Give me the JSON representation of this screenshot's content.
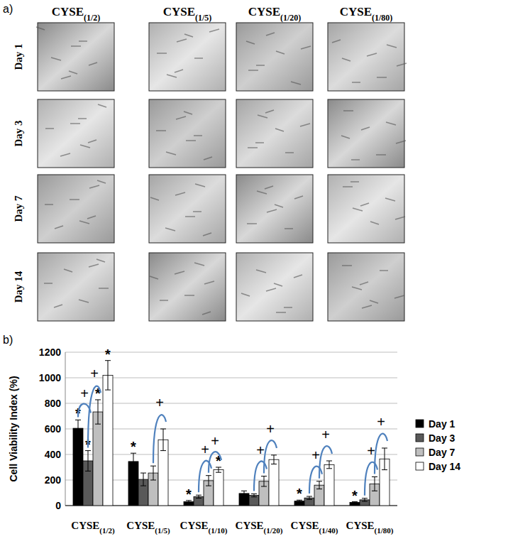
{
  "panel_a": {
    "label": "a)",
    "columns": [
      "CYSE(1/2)",
      "CYSE(1/5)",
      "CYSE(1/20)",
      "CYSE(1/80)"
    ],
    "rows": [
      "Day 1",
      "Day 3",
      "Day 7",
      "Day 14"
    ]
  },
  "panel_b": {
    "label": "b)"
  },
  "chart_data": {
    "type": "bar",
    "y_label": "Cell Viability Index (%)",
    "categories": [
      "CYSE(1/2)",
      "CYSE(1/5)",
      "CYSE(1/10)",
      "CYSE(1/20)",
      "CYSE(1/40)",
      "CYSE(1/80)"
    ],
    "series": [
      {
        "name": "Day 1",
        "color": "#000000",
        "values": [
          605,
          345,
          30,
          95,
          35,
          25
        ],
        "errors": [
          65,
          65,
          10,
          20,
          8,
          5
        ]
      },
      {
        "name": "Day 3",
        "color": "#595959",
        "values": [
          350,
          205,
          70,
          80,
          60,
          45
        ],
        "errors": [
          80,
          50,
          12,
          12,
          12,
          12
        ]
      },
      {
        "name": "Day 7",
        "color": "#bfbfbf",
        "values": [
          733,
          255,
          195,
          190,
          160,
          170
        ],
        "errors": [
          95,
          55,
          40,
          40,
          30,
          55
        ]
      },
      {
        "name": "Day 14",
        "color": "#ffffff",
        "values": [
          1020,
          515,
          280,
          360,
          320,
          365
        ],
        "errors": [
          115,
          85,
          20,
          35,
          30,
          85
        ]
      }
    ],
    "annotations": [
      {
        "text": "*",
        "series": 0,
        "index": 0
      },
      {
        "text": "*",
        "series": 1,
        "index": 0
      },
      {
        "text": "*",
        "series": 2,
        "index": 0
      },
      {
        "text": "*",
        "series": 3,
        "index": 0
      },
      {
        "text": "*",
        "series": 0,
        "index": 1
      },
      {
        "text": "*",
        "series": 0,
        "index": 2
      },
      {
        "text": "*",
        "series": 3,
        "index": 2
      },
      {
        "text": "*",
        "series": 0,
        "index": 4
      },
      {
        "text": "*",
        "series": 0,
        "index": 5
      }
    ],
    "comparisons": [
      {
        "text": "+",
        "from": 0,
        "to": 1,
        "index": 0
      },
      {
        "text": "+",
        "from": 1,
        "to": 2,
        "index": 0
      },
      {
        "text": "+",
        "from": 2,
        "to": 3,
        "index": 1
      },
      {
        "text": "+",
        "from": 1,
        "to": 2,
        "index": 2
      },
      {
        "text": "+",
        "from": 2,
        "to": 3,
        "index": 2
      },
      {
        "text": "+",
        "from": 1,
        "to": 2,
        "index": 3
      },
      {
        "text": "+",
        "from": 2,
        "to": 3,
        "index": 3
      },
      {
        "text": "+",
        "from": 1,
        "to": 2,
        "index": 4
      },
      {
        "text": "+",
        "from": 2,
        "to": 3,
        "index": 4
      },
      {
        "text": "+",
        "from": 1,
        "to": 2,
        "index": 5
      },
      {
        "text": "+",
        "from": 2,
        "to": 3,
        "index": 5
      }
    ],
    "ylim": [
      0,
      1200
    ],
    "yticks": [
      0,
      200,
      400,
      600,
      800,
      1000,
      1200
    ],
    "grid": true,
    "legend": "right"
  }
}
